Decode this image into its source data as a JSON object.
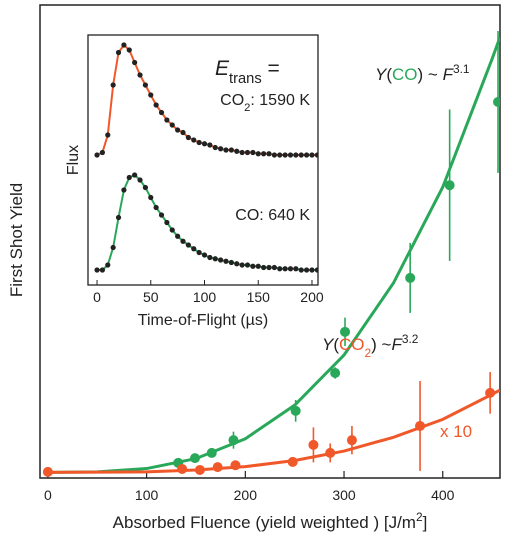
{
  "chart_data": {
    "type": "scatter",
    "x_label_parts": [
      {
        "text": "Absorbed Fluence (yield weighted ) [J/m"
      },
      {
        "text": "2",
        "sup": true
      },
      {
        "text": "]"
      }
    ],
    "y_label": "First Shot Yield",
    "xlim": [
      -8,
      458
    ],
    "ylim": [
      0,
      100
    ],
    "xticks": [
      0,
      100,
      200,
      300,
      400
    ],
    "series": [
      {
        "name": "CO",
        "color": "#2aa85a",
        "x": [
          132,
          149,
          166,
          188,
          251,
          291,
          301,
          367,
          407,
          456
        ],
        "values": [
          3.2,
          4.2,
          5.3,
          8.0,
          14.2,
          22.2,
          30.9,
          42.3,
          61.9,
          79.5
        ],
        "errors": [
          null,
          null,
          null,
          1.8,
          2.3,
          1.2,
          3,
          7.4,
          16,
          15
        ],
        "fit_x": [
          0,
          50,
          100,
          150,
          200,
          250,
          300,
          350,
          400,
          450,
          458
        ],
        "fit_values": [
          1.2,
          1.3,
          2.0,
          4.1,
          8.3,
          15.4,
          26.0,
          41.2,
          61.5,
          88.6,
          93.2
        ]
      },
      {
        "name": "CO2",
        "color": "#f0582a",
        "x": [
          0,
          136,
          154,
          172,
          190,
          248,
          269,
          286,
          308,
          377,
          448
        ],
        "values": [
          1.3,
          1.9,
          1.7,
          2.3,
          2.7,
          3.4,
          7.0,
          5.3,
          8.0,
          11.0,
          18.0
        ],
        "errors": [
          null,
          null,
          null,
          null,
          null,
          1,
          3.7,
          2,
          3,
          9.5,
          4.4
        ],
        "fit_x": [
          0,
          100,
          150,
          200,
          250,
          300,
          350,
          400,
          450,
          458
        ],
        "fit_values": [
          1.2,
          1.3,
          1.7,
          2.4,
          3.7,
          5.7,
          8.6,
          12.4,
          17.7,
          18.6
        ]
      }
    ],
    "annotations": [
      {
        "color": "#2aa85a",
        "parts": [
          {
            "text": "Y",
            "italic": true
          },
          {
            "text": "("
          },
          {
            "text": "CO",
            "colored": true
          },
          {
            "text": ") ~ "
          },
          {
            "text": "F",
            "italic": true
          },
          {
            "text": "3.1",
            "sup": true
          }
        ]
      },
      {
        "color": "#f0582a",
        "parts": [
          {
            "text": "Y",
            "italic": true
          },
          {
            "text": "("
          },
          {
            "text": "CO",
            "colored": true
          },
          {
            "text": "2",
            "sub": true,
            "colored": true
          },
          {
            "text": ") ~"
          },
          {
            "text": "F",
            "italic": true
          },
          {
            "text": "3.2",
            "sup": true
          }
        ]
      },
      {
        "color": "#f0582a",
        "parts": [
          {
            "text": "x 10",
            "colored": true
          }
        ]
      }
    ],
    "inset": {
      "type": "scatter",
      "x_label": "Time-of-Flight (µs)",
      "y_label": "Flux",
      "title_parts": [
        {
          "text": "E",
          "italic": true
        },
        {
          "text": "trans",
          "sub": true
        },
        {
          "text": " ="
        }
      ],
      "xlim": [
        -8.4,
        205.6
      ],
      "ylim": [
        0,
        100
      ],
      "xticks": [
        0,
        50,
        100,
        150,
        200
      ],
      "x": [
        0,
        5,
        10,
        15,
        20,
        25,
        30,
        35,
        40,
        45,
        50,
        55,
        60,
        65,
        70,
        75,
        80,
        85,
        90,
        95,
        100,
        105,
        110,
        115,
        120,
        125,
        130,
        135,
        140,
        145,
        150,
        155,
        160,
        165,
        170,
        175,
        180,
        185,
        190,
        195,
        200,
        205
      ],
      "series": [
        {
          "name": "CO2",
          "label_parts": [
            {
              "text": "CO"
            },
            {
              "text": "2",
              "sub": true
            },
            {
              "text": ": 1590 K"
            }
          ],
          "color": "#f0582a",
          "values": [
            52,
            53,
            60,
            80,
            93,
            96,
            94,
            89,
            84,
            80,
            76,
            72,
            69,
            66,
            64,
            62,
            61,
            59,
            58,
            57,
            56.5,
            56,
            55,
            54.5,
            54,
            54,
            53.5,
            53,
            53,
            53,
            52.5,
            52.5,
            52.5,
            52,
            52,
            52,
            52,
            52,
            52,
            52,
            52,
            52
          ]
        },
        {
          "name": "CO",
          "label_parts": [
            {
              "text": "CO: 640 K"
            }
          ],
          "color": "#2aa85a",
          "values": [
            6,
            6,
            8,
            15,
            27,
            38,
            43,
            44,
            42,
            39,
            35,
            31,
            28,
            25,
            22,
            19.5,
            17.5,
            16,
            14.5,
            13,
            12,
            11,
            10.5,
            10,
            9.5,
            9,
            8.5,
            8,
            8,
            7.5,
            7.5,
            7,
            7,
            7,
            6.5,
            6.5,
            6.5,
            6.5,
            6,
            6,
            6,
            6
          ]
        }
      ]
    }
  }
}
